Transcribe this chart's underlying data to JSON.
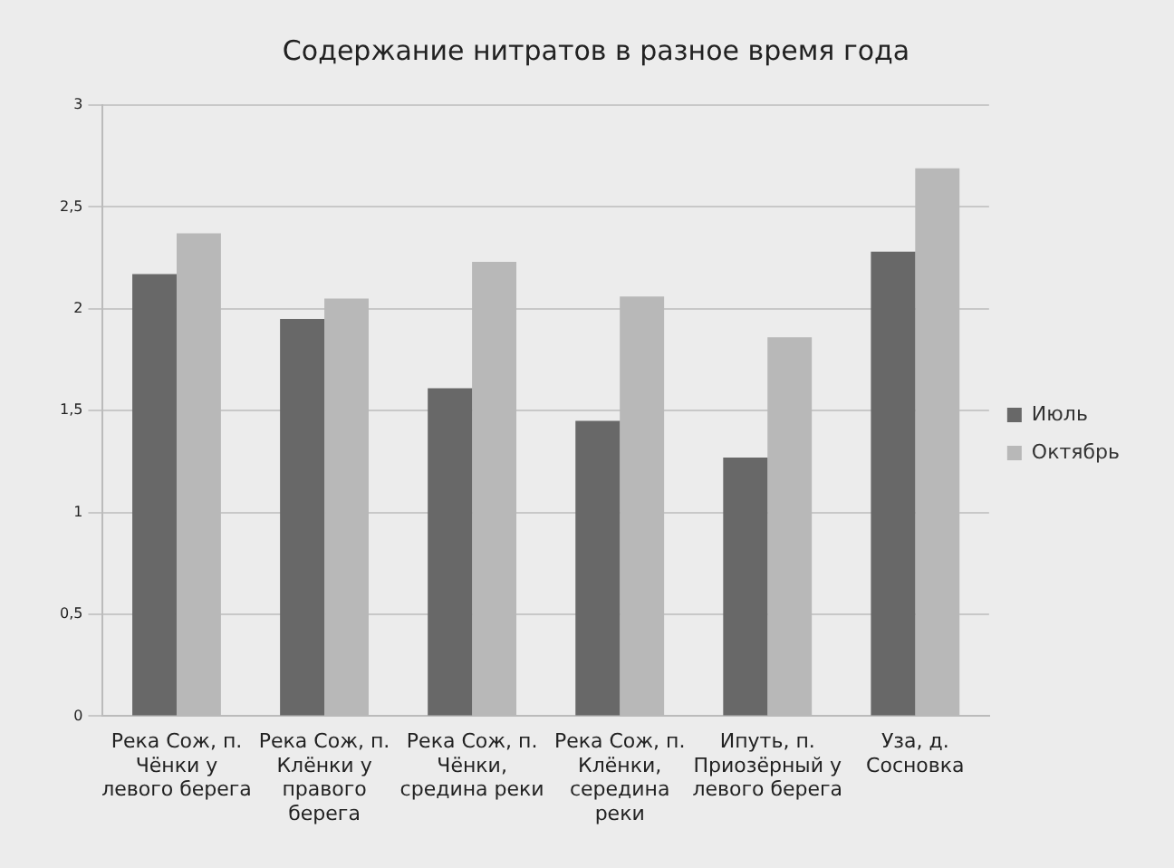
{
  "chart_data": {
    "type": "bar",
    "title": "Содержание нитратов в разное время года",
    "categories": [
      "Река Сож, п. Чёнки у левого берега",
      "Река Сож, п. Клёнки у правого берега",
      "Река Сож, п. Чёнки, средина реки",
      "Река Сож, п. Клёнки, середина реки",
      "Ипуть, п. Приозёрный у левого берега",
      "Уза, д. Сосновка"
    ],
    "series": [
      {
        "name": "Июль",
        "color": "#686868",
        "values": [
          2.17,
          1.95,
          1.61,
          1.45,
          1.27,
          2.28
        ]
      },
      {
        "name": "Октябрь",
        "color": "#b8b8b8",
        "values": [
          2.37,
          2.05,
          2.23,
          2.06,
          1.86,
          2.69
        ]
      }
    ],
    "ylim": [
      0,
      3
    ],
    "yticks": [
      0,
      {
        "value": 0.5,
        "label": "0,5"
      },
      1,
      {
        "value": 1.5,
        "label": "1,5"
      },
      2,
      {
        "value": 2.5,
        "label": "2,5"
      },
      3
    ],
    "grid": "y",
    "legend": "right"
  }
}
